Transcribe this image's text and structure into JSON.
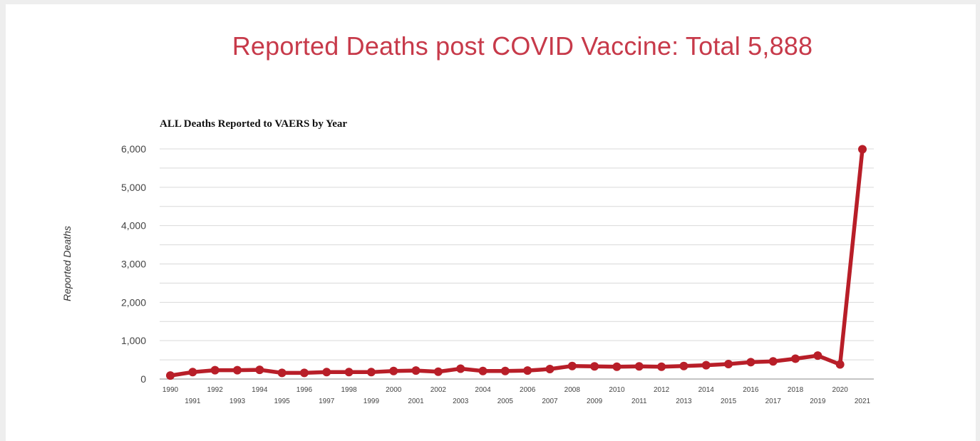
{
  "page_title": "Reported Deaths post COVID Vaccine: Total 5,888",
  "colors": {
    "title": "#c73a4a",
    "series": "#b81e28"
  },
  "chart_data": {
    "type": "line",
    "title": "ALL Deaths Reported to VAERS by Year",
    "xlabel": "",
    "ylabel": "Reported Deaths",
    "ylim": [
      0,
      6000
    ],
    "yticks": [
      0,
      1000,
      2000,
      3000,
      4000,
      5000,
      6000
    ],
    "ytick_labels": [
      "0",
      "1,000",
      "2,000",
      "3,000",
      "4,000",
      "5,000",
      "6,000"
    ],
    "grid": true,
    "categories": [
      "1990",
      "1991",
      "1992",
      "1993",
      "1994",
      "1995",
      "1996",
      "1997",
      "1998",
      "1999",
      "2000",
      "2001",
      "2002",
      "2003",
      "2004",
      "2005",
      "2006",
      "2007",
      "2008",
      "2009",
      "2010",
      "2011",
      "2012",
      "2013",
      "2014",
      "2015",
      "2016",
      "2017",
      "2018",
      "2019",
      "2020",
      "2021"
    ],
    "series": [
      {
        "values": [
          90,
          180,
          230,
          230,
          240,
          160,
          160,
          180,
          180,
          180,
          210,
          220,
          190,
          270,
          210,
          210,
          220,
          260,
          340,
          330,
          320,
          330,
          320,
          340,
          360,
          390,
          440,
          460,
          530,
          610,
          380,
          5990
        ]
      }
    ]
  }
}
